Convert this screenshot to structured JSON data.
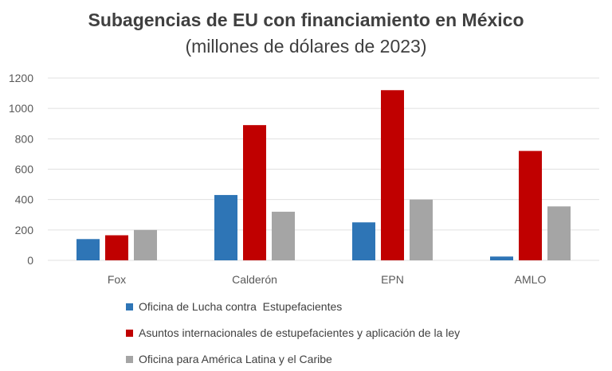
{
  "chart_data": {
    "type": "bar",
    "title": "Subagencias de EU con financiamiento en México",
    "subtitle": "(millones de dólares de 2023)",
    "categories": [
      "Fox",
      "Calderón",
      "EPN",
      "AMLO"
    ],
    "series": [
      {
        "name": "Oficina de Lucha contra  Estupefacientes",
        "color": "#2e75b6",
        "values": [
          140,
          430,
          250,
          25
        ]
      },
      {
        "name": "Asuntos internacionales de estupefacientes y aplicación de la ley",
        "color": "#c00000",
        "values": [
          165,
          890,
          1120,
          720
        ]
      },
      {
        "name": "Oficina para América Latina y el Caribe",
        "color": "#a5a5a5",
        "values": [
          200,
          320,
          400,
          355
        ]
      }
    ],
    "ylim": [
      0,
      1200
    ],
    "yticks": [
      "0",
      "200",
      "400",
      "600",
      "800",
      "1000",
      "1200"
    ],
    "grid": true,
    "legend_placement": "bottom"
  }
}
